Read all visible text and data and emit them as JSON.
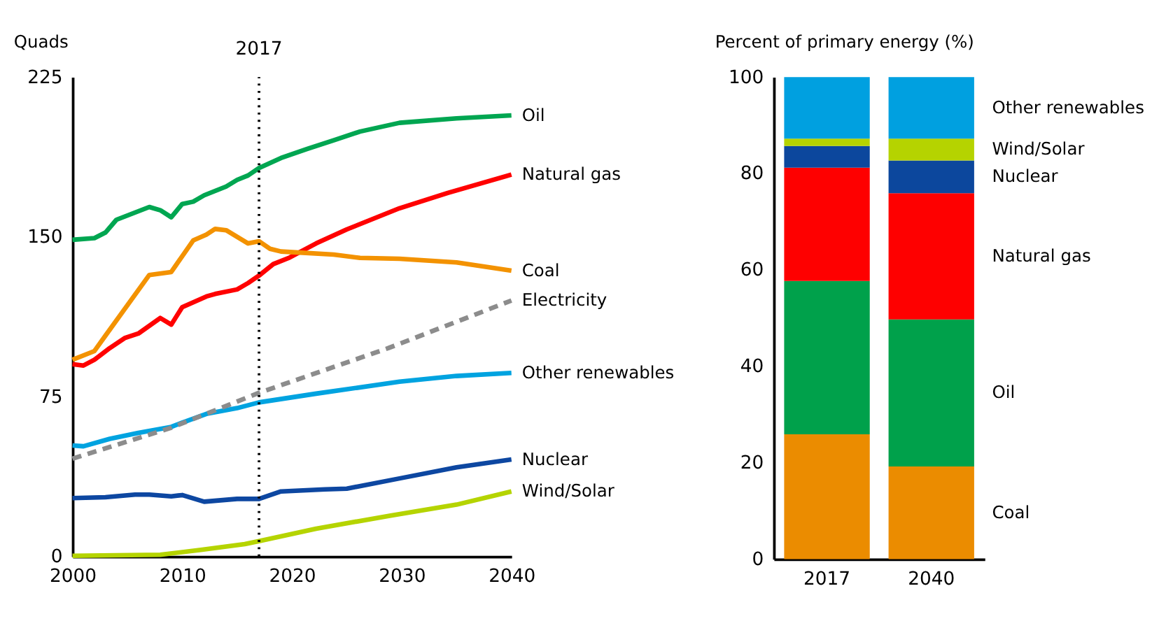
{
  "chart_data": [
    {
      "type": "line",
      "ylabel": "Quads",
      "xlim": [
        2000,
        2040
      ],
      "xticks": [
        2000,
        2010,
        2020,
        2030,
        2040
      ],
      "ylim": [
        0,
        225
      ],
      "yticks": [
        0,
        75,
        150,
        225
      ],
      "grid": false,
      "legend": false,
      "ref_lines": [
        {
          "axis": "x",
          "value": 2017,
          "label": "2017",
          "line_style": "dotted",
          "color": "#000000"
        }
      ],
      "series": [
        {
          "name": "Oil",
          "color": "#00a651",
          "x": [
            2000,
            2002,
            2003,
            2004,
            2007,
            2008,
            2009,
            2010,
            2011,
            2012,
            2014,
            2015,
            2016,
            2017,
            2019,
            2021.4,
            2023.8,
            2026.2,
            2029.8,
            2035,
            2040
          ],
          "values": [
            148.6,
            149.4,
            152,
            158,
            164,
            162.5,
            159.2,
            165.4,
            166.5,
            169.5,
            173.6,
            176.7,
            178.8,
            182.3,
            187,
            191.3,
            195.3,
            199.4,
            203.5,
            205.6,
            207
          ]
        },
        {
          "name": "Natural gas",
          "color": "#ff0000",
          "x": [
            2000,
            2001,
            2002,
            2003.4,
            2004.8,
            2006,
            2008,
            2009,
            2010,
            2012.2,
            2013,
            2015,
            2016,
            2017,
            2018.3,
            2019.8,
            2022.2,
            2025,
            2029.8,
            2034.2,
            2040
          ],
          "values": [
            90.2,
            89.6,
            92.3,
            97.8,
            102.6,
            104.6,
            111.9,
            108.8,
            117,
            122,
            123.2,
            125.3,
            128.3,
            131.8,
            137.2,
            140.3,
            146.9,
            153.5,
            163.4,
            170.6,
            179.2
          ]
        },
        {
          "name": "Coal",
          "color": "#f39200",
          "x": [
            2000,
            2002,
            2003,
            2007,
            2009,
            2011,
            2012.2,
            2013,
            2014,
            2016,
            2017,
            2018,
            2019,
            2023.8,
            2026.2,
            2029.8,
            2035,
            2040
          ],
          "values": [
            92.3,
            96.4,
            103.6,
            132.1,
            133.5,
            148.3,
            151,
            153.7,
            153.1,
            146.9,
            147.9,
            144.4,
            143.1,
            141.7,
            140.1,
            139.7,
            138,
            134.1
          ]
        },
        {
          "name": "Electricity",
          "color": "#8c8c8c",
          "line_style": "dashed",
          "x": [
            2000,
            2009,
            2017,
            2028.8,
            2040
          ],
          "values": [
            45.9,
            60.4,
            76.8,
            97.8,
            120.1
          ]
        },
        {
          "name": "Other renewables",
          "color": "#00a3e0",
          "x": [
            2000,
            2001,
            2003.4,
            2006,
            2009,
            2010,
            2012.2,
            2015,
            2017,
            2022.2,
            2029.8,
            2035,
            2040
          ],
          "values": [
            52.1,
            51.7,
            55.2,
            58,
            60.8,
            62.8,
            66.9,
            69.6,
            72.3,
            76.4,
            82,
            84.7,
            86.1
          ]
        },
        {
          "name": "Nuclear",
          "color": "#0d47a1",
          "x": [
            2000,
            2003,
            2005.7,
            2007,
            2009,
            2010,
            2012,
            2015,
            2017,
            2019,
            2023,
            2025,
            2029.8,
            2035,
            2040
          ],
          "values": [
            27.4,
            27.8,
            29,
            29,
            28.2,
            28.8,
            25.7,
            27,
            27,
            30.5,
            31.5,
            31.8,
            36.6,
            41.8,
            45.5
          ]
        },
        {
          "name": "Wind/Solar",
          "color": "#b5d400",
          "x": [
            2000,
            2008,
            2011.7,
            2015.7,
            2017,
            2022.2,
            2029,
            2035,
            2040
          ],
          "values": [
            0.3,
            0.8,
            3.1,
            5.8,
            7.2,
            13,
            19.2,
            24.3,
            30.5
          ]
        }
      ]
    },
    {
      "type": "bar",
      "stacked": true,
      "ylabel": "Percent of primary energy (%)",
      "categories": [
        "2017",
        "2040"
      ],
      "ylim": [
        0,
        100
      ],
      "yticks": [
        0,
        20,
        40,
        60,
        80,
        100
      ],
      "grid": false,
      "legend": false,
      "series": [
        {
          "name": "Coal",
          "color": "#eb8c00",
          "values": [
            25.9,
            19.2
          ]
        },
        {
          "name": "Oil",
          "color": "#00a14b",
          "values": [
            31.8,
            30.5
          ]
        },
        {
          "name": "Natural gas",
          "color": "#fe0000",
          "values": [
            23.5,
            26.2
          ]
        },
        {
          "name": "Nuclear",
          "color": "#0c479d",
          "values": [
            4.5,
            6.8
          ]
        },
        {
          "name": "Wind/Solar",
          "color": "#b5d300",
          "values": [
            1.5,
            4.5
          ]
        },
        {
          "name": "Other renewables",
          "color": "#00a0e0",
          "values": [
            12.8,
            12.8
          ]
        }
      ]
    }
  ]
}
